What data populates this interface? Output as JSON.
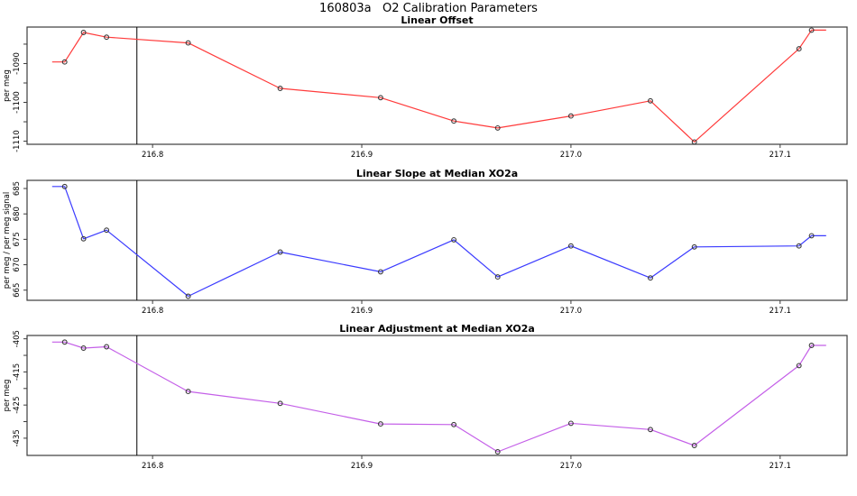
{
  "main_title": "160803a   O2 Calibration Parameters",
  "colors": {
    "axis": "#3c3c3c",
    "tick_text": "#000000",
    "vline": "#000000",
    "point_outline": "#3a3a3a",
    "offset_line": "#ff3b3b",
    "slope_line": "#3b3bff",
    "adjustment_line": "#c45fe8"
  },
  "chart_data": [
    {
      "type": "line",
      "title": "Linear Offset",
      "ylabel": "per meg",
      "line_color": "#ff3b3b",
      "x": [
        216.758,
        216.767,
        216.778,
        216.817,
        216.861,
        216.909,
        216.944,
        216.965,
        217.0,
        217.038,
        217.059,
        217.109,
        217.115
      ],
      "values": [
        -1089.6,
        -1082.0,
        -1083.2,
        -1084.7,
        -1096.4,
        -1098.8,
        -1104.8,
        -1106.6,
        -1103.5,
        -1099.6,
        -1110.2,
        -1086.2,
        -1081.4
      ],
      "lead_x": 216.752,
      "tail_x": 217.122,
      "vline_x": 216.7925,
      "xlim": [
        216.74,
        217.132
      ],
      "ylim": [
        -1110.8,
        -1080.6
      ],
      "xtick_values": [
        216.8,
        216.9,
        217.0,
        217.1
      ],
      "xtick_labels": [
        "216.8",
        "216.9",
        "217.0",
        "217.1"
      ],
      "ytick_values": [
        -1085,
        -1090,
        -1095,
        -1100,
        -1105,
        -1110
      ],
      "ytick_labels": [
        "",
        "-1090",
        "",
        "-1100",
        "",
        "-1110"
      ],
      "grid": false,
      "legend": null
    },
    {
      "type": "line",
      "title": "Linear Slope at Median XO2a",
      "ylabel": "per meg / per meg signal",
      "line_color": "#3b3bff",
      "x": [
        216.758,
        216.767,
        216.778,
        216.817,
        216.861,
        216.909,
        216.944,
        216.965,
        217.0,
        217.038,
        217.059,
        217.109,
        217.115
      ],
      "values": [
        685.4,
        675.1,
        676.8,
        663.8,
        672.5,
        668.6,
        674.9,
        667.6,
        673.7,
        667.4,
        673.5,
        673.7,
        675.7
      ],
      "lead_x": 216.752,
      "tail_x": 217.122,
      "vline_x": 216.7925,
      "xlim": [
        216.74,
        217.132
      ],
      "ylim": [
        663.0,
        686.6
      ],
      "xtick_values": [
        216.8,
        216.9,
        217.0,
        217.1
      ],
      "xtick_labels": [
        "216.8",
        "216.9",
        "217.0",
        "217.1"
      ],
      "ytick_values": [
        665,
        670,
        675,
        680,
        685
      ],
      "ytick_labels": [
        "665",
        "670",
        "675",
        "680",
        "685"
      ],
      "grid": false,
      "legend": null
    },
    {
      "type": "line",
      "title": "Linear Adjustment at Median XO2a",
      "ylabel": "per meg",
      "line_color": "#c45fe8",
      "x": [
        216.758,
        216.767,
        216.778,
        216.817,
        216.861,
        216.909,
        216.944,
        216.965,
        217.0,
        217.038,
        217.059,
        217.109,
        217.115
      ],
      "values": [
        -406.0,
        -407.8,
        -407.4,
        -420.9,
        -424.5,
        -430.7,
        -430.9,
        -439.1,
        -430.5,
        -432.4,
        -437.2,
        -413.1,
        -407.0
      ],
      "lead_x": 216.752,
      "tail_x": 217.122,
      "vline_x": 216.7925,
      "xlim": [
        216.74,
        217.132
      ],
      "ylim": [
        -440.2,
        -404.0
      ],
      "xtick_values": [
        216.8,
        216.9,
        217.0,
        217.1
      ],
      "xtick_labels": [
        "216.8",
        "216.9",
        "217.0",
        "217.1"
      ],
      "ytick_values": [
        -405,
        -410,
        -415,
        -420,
        -425,
        -430,
        -435
      ],
      "ytick_labels": [
        "-405",
        "",
        "-415",
        "",
        "-425",
        "",
        "-435"
      ],
      "grid": false,
      "legend": null
    }
  ]
}
